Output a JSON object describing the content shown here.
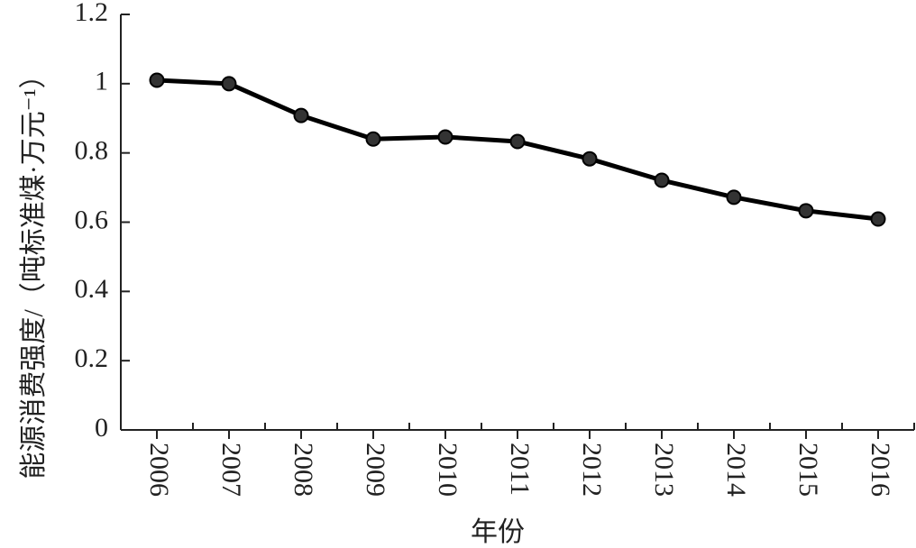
{
  "chart_data": {
    "type": "line",
    "x_label": "年份",
    "y_label": "能源消费强度/（吨标准煤·万元⁻¹）",
    "categories": [
      "2006",
      "2007",
      "2008",
      "2009",
      "2010",
      "2011",
      "2012",
      "2013",
      "2014",
      "2015",
      "2016"
    ],
    "values": [
      1.01,
      1.0,
      0.908,
      0.84,
      0.846,
      0.833,
      0.783,
      0.721,
      0.672,
      0.633,
      0.609
    ],
    "color": "#000000",
    "ylim": [
      0,
      1.2
    ],
    "yticks": [
      0,
      0.2,
      0.4,
      0.6,
      0.8,
      1,
      1.2
    ],
    "grid": false
  }
}
